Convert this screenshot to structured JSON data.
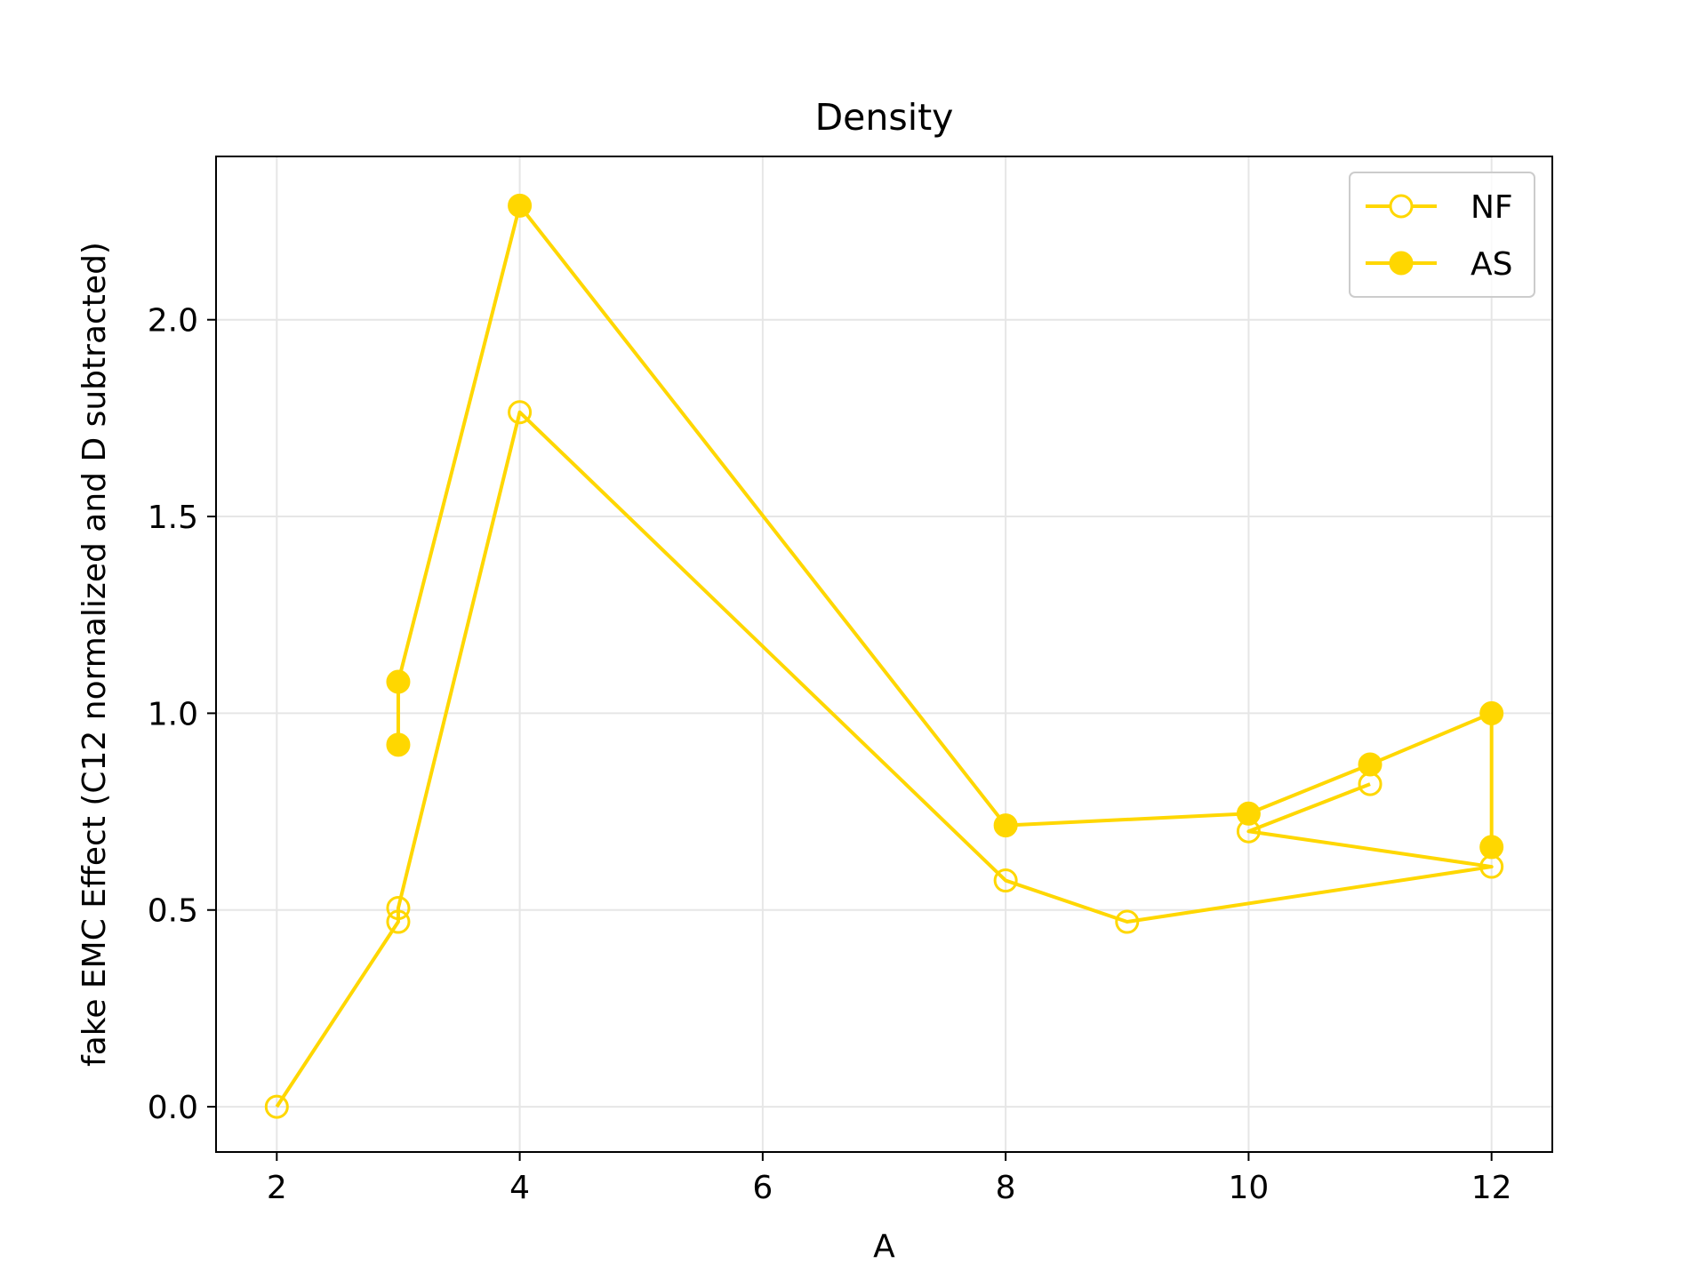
{
  "chart_data": {
    "type": "line",
    "title": "Density",
    "xlabel": "A",
    "ylabel": "fake EMC Effect (C12 normalized and D subtracted)",
    "xlim": [
      1.5,
      12.5
    ],
    "ylim": [
      -0.115,
      2.415
    ],
    "xticks": [
      2,
      4,
      6,
      8,
      10,
      12
    ],
    "xtick_labels": [
      "2",
      "4",
      "6",
      "8",
      "10",
      "12"
    ],
    "yticks": [
      0.0,
      0.5,
      1.0,
      1.5,
      2.0
    ],
    "ytick_labels": [
      "0.0",
      "0.5",
      "1.0",
      "1.5",
      "2.0"
    ],
    "grid": true,
    "legend_position": "top-right",
    "color": "#FFD700",
    "series": [
      {
        "name": "NF",
        "marker": "open-circle",
        "x": [
          2,
          3,
          3,
          4,
          8,
          9,
          12,
          10,
          11
        ],
        "y": [
          0.0,
          0.47,
          0.505,
          1.765,
          0.575,
          0.47,
          0.61,
          0.7,
          0.82
        ]
      },
      {
        "name": "AS",
        "marker": "filled-circle",
        "x": [
          3,
          3,
          4,
          8,
          10,
          11,
          12,
          12
        ],
        "y": [
          0.92,
          1.08,
          2.29,
          0.715,
          0.745,
          0.87,
          1.0,
          0.66
        ]
      }
    ]
  }
}
